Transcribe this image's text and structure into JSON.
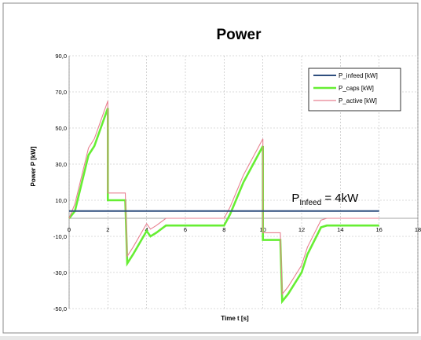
{
  "chart_data": {
    "type": "line",
    "title": "Power",
    "xlabel": "Time t [s]",
    "ylabel": "Power P [kW]",
    "xlim": [
      0,
      18
    ],
    "ylim": [
      -50,
      90
    ],
    "x_ticks": [
      0,
      2,
      4,
      6,
      8,
      10,
      12,
      14,
      16,
      18
    ],
    "x_tick_labels": [
      "0",
      "2",
      "4",
      "6",
      "8",
      "10",
      "12",
      "14",
      "16",
      "18"
    ],
    "y_ticks": [
      90,
      70,
      50,
      30,
      10,
      -10,
      -30,
      -50
    ],
    "y_tick_labels": [
      "90,0",
      "70,0",
      "50,0",
      "30,0",
      "10,0",
      "-10,0",
      "-30,0",
      "-50,0"
    ],
    "grid": true,
    "legend_position": "top-right",
    "annotation": {
      "prefix": "P",
      "subscript": "Infeed",
      "suffix": " = 4kW",
      "x": 12.5,
      "y": 10
    },
    "series": [
      {
        "name": "P_infeed [kW]",
        "color": "#2e4e7e",
        "x": [
          0,
          16
        ],
        "y": [
          4,
          4
        ]
      },
      {
        "name": "P_caps [kW]",
        "color": "#66ee33",
        "x": [
          0,
          0.3,
          1,
          1.3,
          2,
          2,
          2.9,
          3,
          3.3,
          4,
          4.2,
          4.5,
          5,
          8,
          8.3,
          9,
          10,
          10,
          10.9,
          11,
          11.3,
          12,
          12.3,
          13,
          13.3,
          16
        ],
        "y": [
          0,
          4,
          35,
          40,
          61,
          10,
          10,
          -25,
          -20,
          -7,
          -10,
          -8,
          -4,
          -4,
          2,
          20,
          40,
          -12,
          -12,
          -46,
          -42,
          -30,
          -20,
          -5,
          -4,
          -4
        ]
      },
      {
        "name": "P_active [kW]",
        "color": "#e88090",
        "x": [
          0,
          0.3,
          1,
          1.3,
          2,
          2,
          2.9,
          3,
          3.3,
          4,
          4.2,
          4.5,
          5,
          8,
          8.3,
          9,
          10,
          10,
          10.9,
          11,
          11.3,
          12,
          12.3,
          13,
          13.3,
          16
        ],
        "y": [
          0,
          8,
          39,
          44,
          65,
          14,
          14,
          -21,
          -16,
          -3,
          -6,
          -4,
          0,
          0,
          6,
          24,
          44,
          -8,
          -8,
          -42,
          -38,
          -26,
          -16,
          -1,
          0,
          0
        ]
      }
    ]
  }
}
